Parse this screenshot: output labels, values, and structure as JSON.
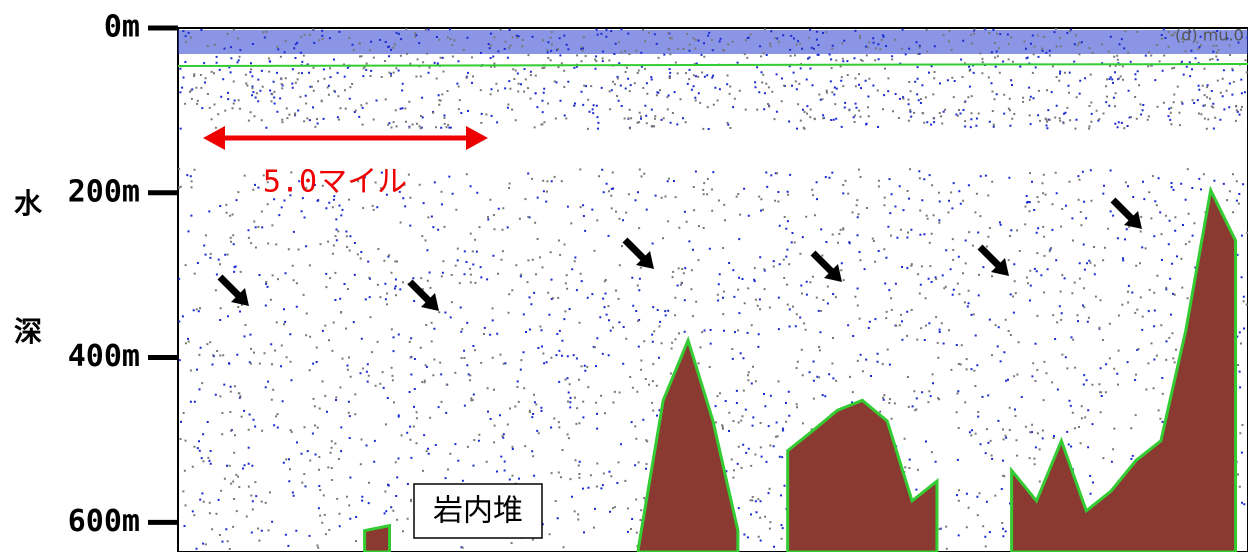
{
  "chart_data": {
    "type": "echogram",
    "ylabel": [
      "水",
      "深"
    ],
    "ylim": [
      0,
      636
    ],
    "yticks": [
      {
        "value": 0,
        "label": "0m"
      },
      {
        "value": 200,
        "label": "200m"
      },
      {
        "value": 400,
        "label": "400m"
      },
      {
        "value": 600,
        "label": "600m"
      }
    ],
    "annotations": {
      "distance": "5.0マイル",
      "bank": "岩内堆",
      "corner": "(d) mu.0"
    },
    "categories": [
      null,
      null,
      null,
      null,
      null,
      null,
      null,
      null,
      null,
      null,
      null,
      null,
      null,
      null,
      null,
      null,
      null,
      null,
      null,
      null,
      null,
      null,
      null,
      null,
      null,
      null,
      null,
      null,
      null,
      null,
      null,
      null,
      null,
      null,
      null,
      null,
      null,
      null,
      null,
      null,
      null,
      null,
      null
    ],
    "series": [
      {
        "color": "#8b3a32",
        "values": [
          null,
          null,
          null,
          null,
          null,
          null,
          null,
          610,
          604,
          null,
          null,
          null,
          null,
          null,
          null,
          null,
          null,
          null,
          632,
          452,
          379,
          477,
          610,
          null,
          513,
          489,
          464,
          452,
          477,
          574,
          550,
          null,
          null,
          537,
          574,
          501,
          586,
          562,
          525,
          501,
          367,
          197,
          258
        ]
      }
    ]
  }
}
